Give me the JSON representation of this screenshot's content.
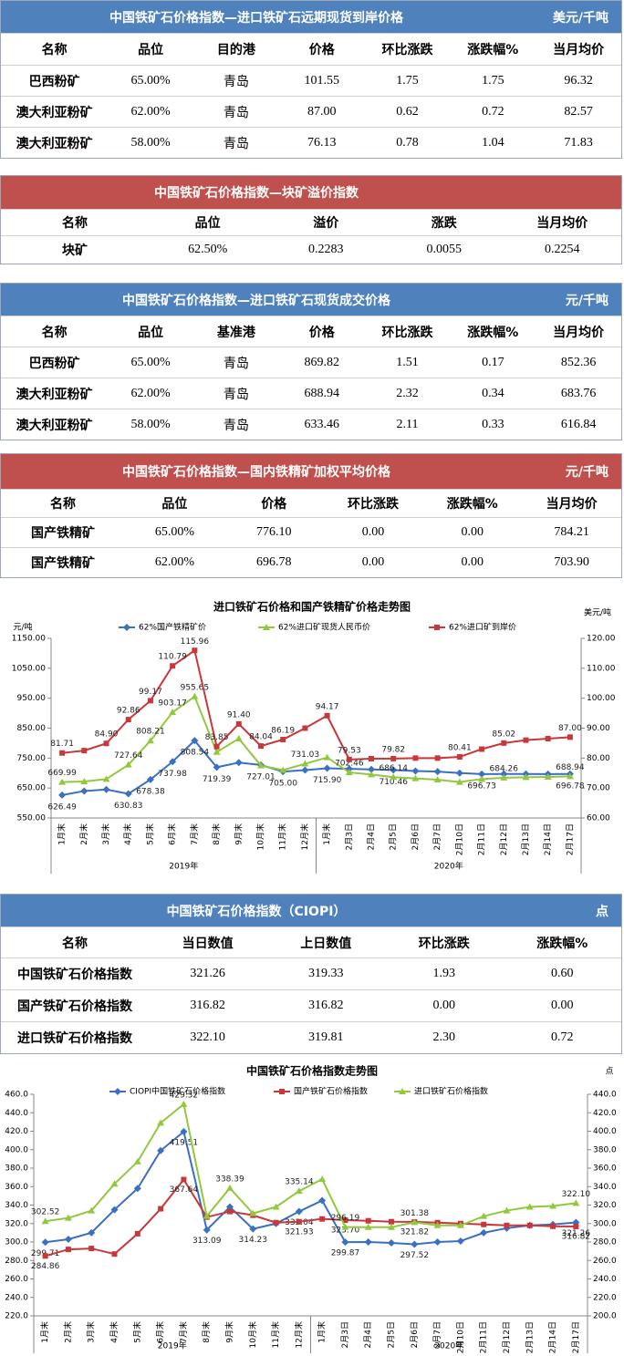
{
  "tables": [
    {
      "title": "中国铁矿石价格指数—进口铁矿石远期现货到岸价格",
      "unit": "美元/千吨",
      "header_color": "#4f81bd",
      "headers": [
        "名称",
        "品位",
        "目的港",
        "价格",
        "环比涨跌",
        "涨跌幅%",
        "当月均价"
      ],
      "rows": [
        [
          "巴西粉矿",
          "65.00%",
          "青岛",
          "101.55",
          "1.75",
          "1.75",
          "96.32"
        ],
        [
          "澳大利亚粉矿",
          "62.00%",
          "青岛",
          "87.00",
          "0.62",
          "0.72",
          "82.57"
        ],
        [
          "澳大利亚粉矿",
          "58.00%",
          "青岛",
          "76.13",
          "0.78",
          "1.04",
          "71.83"
        ]
      ]
    },
    {
      "title": "中国铁矿石价格指数—块矿溢价指数",
      "header_color": "#c0504d",
      "headers": [
        "名称",
        "品位",
        "溢价",
        "涨跌",
        "当月均价"
      ],
      "rows": [
        [
          "块矿",
          "62.50%",
          "0.2283",
          "0.0055",
          "0.2254"
        ]
      ]
    },
    {
      "title": "中国铁矿石价格指数—进口铁矿石现货成交价格",
      "unit": "元/千吨",
      "header_color": "#4f81bd",
      "headers": [
        "名称",
        "品位",
        "基准港",
        "价格",
        "环比涨跌",
        "涨跌幅%",
        "当月均价"
      ],
      "rows": [
        [
          "巴西粉矿",
          "65.00%",
          "青岛",
          "869.82",
          "1.51",
          "0.17",
          "852.36"
        ],
        [
          "澳大利亚粉矿",
          "62.00%",
          "青岛",
          "688.94",
          "2.32",
          "0.34",
          "683.76"
        ],
        [
          "澳大利亚粉矿",
          "58.00%",
          "青岛",
          "633.46",
          "2.11",
          "0.33",
          "616.84"
        ]
      ]
    },
    {
      "title": "中国铁矿石价格指数—国内铁精矿加权平均价格",
      "unit": "元/千吨",
      "header_color": "#c0504d",
      "headers": [
        "名称",
        "品位",
        "价格",
        "环比涨跌",
        "涨跌幅%",
        "当月均价"
      ],
      "rows": [
        [
          "国产铁精矿",
          "65.00%",
          "776.10",
          "0.00",
          "0.00",
          "784.21"
        ],
        [
          "国产铁精矿",
          "62.00%",
          "696.78",
          "0.00",
          "0.00",
          "703.90"
        ]
      ]
    },
    {
      "title": "中国铁矿石价格指数（CIOPI）",
      "unit": "点",
      "header_color": "#4f81bd",
      "headers": [
        "名称",
        "当日数值",
        "上日数值",
        "环比涨跌",
        "涨跌幅%"
      ],
      "rows": [
        [
          "中国铁矿石价格指数",
          "321.26",
          "319.33",
          "1.93",
          "0.60"
        ],
        [
          "国产铁矿石价格指数",
          "316.82",
          "316.82",
          "0.00",
          "0.00"
        ],
        [
          "进口铁矿石价格指数",
          "322.10",
          "319.81",
          "2.30",
          "0.72"
        ]
      ]
    }
  ],
  "chart_data": [
    {
      "type": "line",
      "title": "进口铁矿石价格和国产铁精矿价格走势图",
      "y_label": "元/吨",
      "y2_label": "美元/吨",
      "categories": [
        "1月末",
        "2月末",
        "3月末",
        "4月末",
        "5月末",
        "6月末",
        "7月末",
        "8月末",
        "9月末",
        "10月末",
        "11月末",
        "12月末",
        "1月末",
        "2月3日",
        "2月4日",
        "2月5日",
        "2月6日",
        "2月7日",
        "2月10日",
        "2月11日",
        "2月12日",
        "2月13日",
        "2月14日",
        "2月17日"
      ],
      "x_groups": [
        {
          "label": "2019年",
          "count": 12
        },
        {
          "label": "2020年",
          "count": 12
        }
      ],
      "ylim": [
        550,
        1150
      ],
      "yticks": [
        {
          "value": 550,
          "label": "550.00"
        },
        {
          "value": 650,
          "label": "650.00"
        },
        {
          "value": 750,
          "label": "750.00"
        },
        {
          "value": 850,
          "label": "850.00"
        },
        {
          "value": 950,
          "label": "950.00"
        },
        {
          "value": 1050,
          "label": "1050.00"
        },
        {
          "value": 1150,
          "label": "1150.00"
        }
      ],
      "y2lim": [
        60,
        120
      ],
      "y2ticks": [
        {
          "value": 60,
          "label": "60.00"
        },
        {
          "value": 70,
          "label": "70.00"
        },
        {
          "value": 80,
          "label": "80.00"
        },
        {
          "value": 90,
          "label": "90.00"
        },
        {
          "value": 100,
          "label": "100.00"
        },
        {
          "value": 110,
          "label": "110.00"
        },
        {
          "value": 120,
          "label": "120.00"
        }
      ],
      "grid": false,
      "series": [
        {
          "name": "62%国产铁精矿价",
          "color": "#3a6fc4",
          "marker": "diamond",
          "values": [
            626.49,
            640,
            645,
            630.83,
            678.38,
            737.98,
            808.54,
            719.39,
            735,
            727.01,
            705,
            710,
            715.9,
            714,
            712,
            710.46,
            707,
            705,
            700,
            696.73,
            697,
            697,
            696.5,
            696.78
          ],
          "value_labels": [
            "626.49",
            null,
            null,
            "630.83",
            "678.38",
            "737.98",
            "808.54",
            "719.39",
            null,
            "727.01",
            "705.00",
            null,
            "715.90",
            null,
            null,
            "710.46",
            null,
            null,
            null,
            "696.73",
            null,
            null,
            null,
            "696.78"
          ]
        },
        {
          "name": "62%进口矿现货人民币价",
          "color": "#92c83e",
          "marker": "triangle",
          "values": [
            669.99,
            672,
            680,
            727.64,
            808.21,
            903.17,
            955.65,
            770,
            815,
            725,
            710,
            731.03,
            752,
            702.46,
            695,
            686.14,
            682,
            678,
            670,
            680,
            684.26,
            686,
            687,
            688.94
          ],
          "value_labels": [
            "669.99",
            null,
            null,
            "727.64",
            "808.21",
            "903.17",
            "955.65",
            null,
            null,
            null,
            null,
            "731.03",
            null,
            "702.46",
            null,
            "686.14",
            null,
            null,
            null,
            null,
            "684.26",
            null,
            null,
            "688.94"
          ]
        },
        {
          "name": "62%进口矿到岸价",
          "color": "#c8373a",
          "marker": "square",
          "axis": "y2",
          "values": [
            81.71,
            82.5,
            84.9,
            92.86,
            99.17,
            110.79,
            115.96,
            83.85,
            91.4,
            84.04,
            86.19,
            90,
            94.17,
            79.53,
            79.8,
            79.82,
            80,
            80,
            80.41,
            83,
            85.02,
            86,
            86.5,
            87
          ],
          "value_labels": [
            "81.71",
            null,
            "84.90",
            "92.86",
            "99.17",
            "110.79",
            "115.96",
            "83.85",
            "91.40",
            "84.04",
            "86.19",
            null,
            "94.17",
            "79.53",
            null,
            "79.82",
            null,
            null,
            "80.41",
            null,
            "85.02",
            null,
            null,
            "87.00"
          ]
        }
      ]
    },
    {
      "type": "line",
      "title": "中国铁矿石价格指数走势图",
      "y2_label": "点",
      "categories": [
        "1月末",
        "2月末",
        "3月末",
        "4月末",
        "5月末",
        "6月末",
        "7月末",
        "8月末",
        "9月末",
        "10月末",
        "11月末",
        "12月末",
        "1月末",
        "2月3日",
        "2月4日",
        "2月5日",
        "2月6日",
        "2月7日",
        "2月10日",
        "2月11日",
        "2月12日",
        "2月13日",
        "2月14日",
        "2月17日"
      ],
      "x_groups": [
        {
          "label": "2019年",
          "count": 12
        },
        {
          "label": "2020年",
          "count": 12
        }
      ],
      "ylim": [
        220,
        460
      ],
      "yticks": [
        {
          "value": 220,
          "label": "220.0"
        },
        {
          "value": 240,
          "label": "240.0"
        },
        {
          "value": 260,
          "label": "260.0"
        },
        {
          "value": 280,
          "label": "280.0"
        },
        {
          "value": 300,
          "label": "300.0"
        },
        {
          "value": 320,
          "label": "320.0"
        },
        {
          "value": 340,
          "label": "340.0"
        },
        {
          "value": 360,
          "label": "360.0"
        },
        {
          "value": 380,
          "label": "380.0"
        },
        {
          "value": 400,
          "label": "400.0"
        },
        {
          "value": 420,
          "label": "420.0"
        },
        {
          "value": 440,
          "label": "440.0"
        },
        {
          "value": 460,
          "label": "460.0"
        }
      ],
      "y2lim": [
        200,
        440
      ],
      "y2ticks": [
        {
          "value": 200,
          "label": "200.0"
        },
        {
          "value": 220,
          "label": "220.0"
        },
        {
          "value": 240,
          "label": "240.0"
        },
        {
          "value": 260,
          "label": "260.0"
        },
        {
          "value": 280,
          "label": "280.0"
        },
        {
          "value": 300,
          "label": "300.0"
        },
        {
          "value": 320,
          "label": "320.0"
        },
        {
          "value": 340,
          "label": "340.0"
        },
        {
          "value": 360,
          "label": "360.0"
        },
        {
          "value": 380,
          "label": "380.0"
        },
        {
          "value": 400,
          "label": "400.0"
        },
        {
          "value": 420,
          "label": "420.0"
        },
        {
          "value": 440,
          "label": "440.0"
        }
      ],
      "grid": false,
      "series": [
        {
          "name": "CIOPI中国铁矿石价格指数",
          "color": "#3a6fc4",
          "marker": "diamond",
          "values": [
            299.71,
            303,
            310,
            335,
            358,
            399,
            419.51,
            313.09,
            338,
            314.23,
            320,
            333.04,
            345,
            299.87,
            300,
            299,
            297.52,
            300,
            301,
            310,
            315,
            318,
            319,
            321.26
          ],
          "value_labels": [
            "299.71",
            null,
            null,
            null,
            null,
            null,
            "419.51",
            "313.09",
            null,
            "314.23",
            null,
            "333.04",
            null,
            "299.87",
            null,
            null,
            "297.52",
            null,
            null,
            null,
            null,
            null,
            null,
            "321.26"
          ]
        },
        {
          "name": "国产铁矿石价格指数",
          "color": "#c8373a",
          "marker": "square",
          "values": [
            284.86,
            292,
            293,
            287,
            309,
            336,
            367.64,
            327,
            333,
            329,
            321,
            321.93,
            325,
            323.7,
            323,
            322,
            321.82,
            321,
            320,
            319,
            318,
            318,
            317,
            316.82
          ],
          "value_labels": [
            "284.86",
            null,
            null,
            null,
            null,
            null,
            "367.64",
            null,
            null,
            null,
            null,
            "321.93",
            null,
            "323.70",
            null,
            null,
            "321.82",
            null,
            null,
            null,
            null,
            null,
            null,
            "316.82"
          ]
        },
        {
          "name": "进口铁矿石价格指数",
          "color": "#92c83e",
          "marker": "triangle",
          "axis": "y2",
          "values": [
            302.52,
            306,
            314,
            343,
            367,
            409,
            429.32,
            308,
            338.39,
            311,
            318,
            335.14,
            348,
            296.19,
            296,
            296,
            301.38,
            298,
            298,
            308,
            314,
            318,
            319,
            322.1
          ],
          "value_labels": [
            "302.52",
            null,
            null,
            null,
            null,
            null,
            "429.32",
            null,
            "338.39",
            null,
            null,
            "335.14",
            null,
            "296.19",
            null,
            null,
            "301.38",
            null,
            null,
            null,
            null,
            null,
            null,
            "322.10"
          ]
        }
      ]
    }
  ]
}
